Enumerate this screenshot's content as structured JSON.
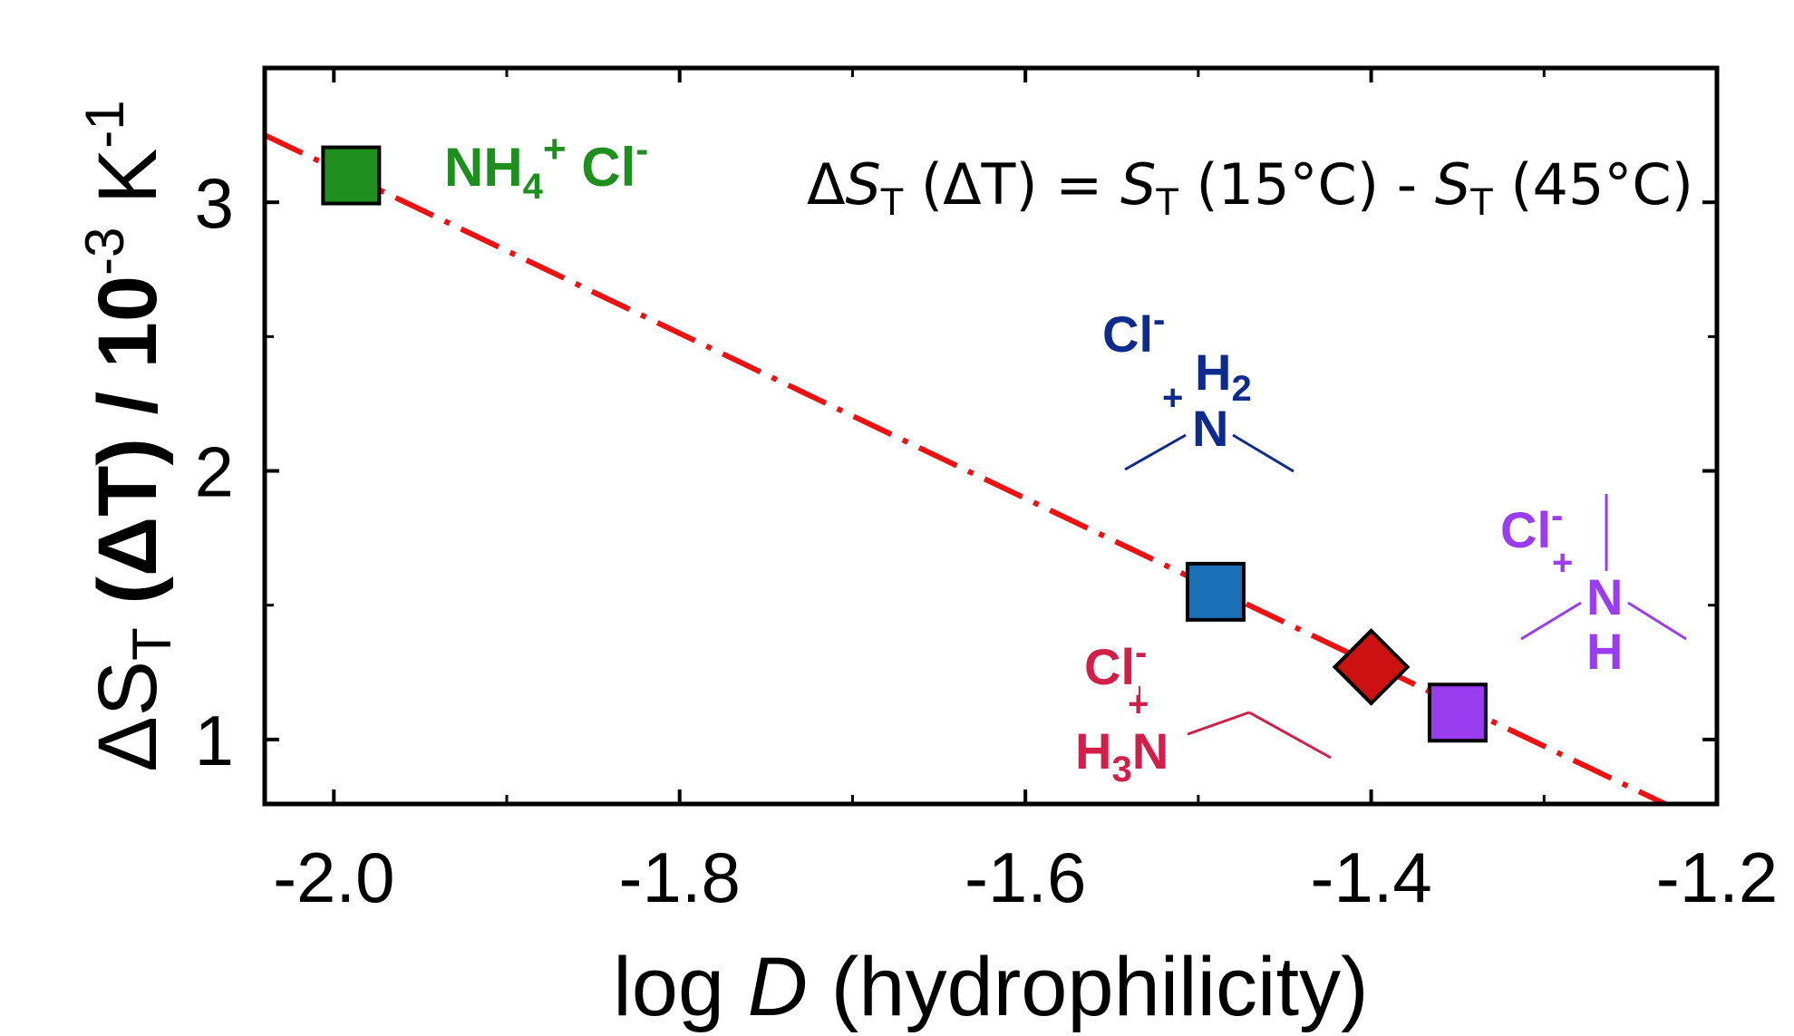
{
  "chart_data": {
    "type": "scatter",
    "xlabel_main": "log ",
    "xlabel_italic": "D",
    "xlabel_rest": " (hydrophilicity)",
    "ylabel_main": "ΔS",
    "ylabel_sub": "T",
    "ylabel_rest": " (ΔT) / 10",
    "ylabel_exp1": "-3",
    "ylabel_unit": " K",
    "ylabel_exp2": "-1",
    "xlim": [
      -2.04,
      -1.2
    ],
    "ylim": [
      0.76,
      3.5
    ],
    "x_ticks": [
      {
        "value": -2.0,
        "label": "-2.0"
      },
      {
        "value": -1.8,
        "label": "-1.8"
      },
      {
        "value": -1.6,
        "label": "-1.6"
      },
      {
        "value": -1.4,
        "label": "-1.4"
      },
      {
        "value": -1.2,
        "label": "-1.2"
      }
    ],
    "x_minor_ticks": [
      -1.9,
      -1.7,
      -1.5,
      -1.3
    ],
    "y_ticks": [
      {
        "value": 1,
        "label": "1"
      },
      {
        "value": 2,
        "label": "2"
      },
      {
        "value": 3,
        "label": "3"
      }
    ],
    "y_minor_ticks": [
      1.5,
      2.5
    ],
    "points": [
      {
        "x": -1.99,
        "y": 3.1,
        "marker": "square",
        "color": "#1e8f1e"
      },
      {
        "x": -1.49,
        "y": 1.55,
        "marker": "square",
        "color": "#1a6fb5"
      },
      {
        "x": -1.4,
        "y": 1.27,
        "marker": "diamond",
        "color": "#cc1111"
      },
      {
        "x": -1.35,
        "y": 1.1,
        "marker": "square",
        "color": "#9a3cf0"
      }
    ],
    "fit_line": {
      "x1": -2.04,
      "y1": 3.25,
      "x2": -1.23,
      "y2": 0.76,
      "color": "#ee1111",
      "style": "dash-dot"
    },
    "annotation": {
      "delta": "Δ",
      "s1": "S",
      "sub1": "T",
      "mid": " (ΔT) = ",
      "s2": "S",
      "sub2": "T",
      "mid2": " (15°C) - ",
      "s3": "S",
      "sub3": "T",
      "end": " (45°C)"
    },
    "labels": {
      "green": {
        "nh": "NH",
        "sub4": "4",
        "plus": "+",
        "cl": " Cl",
        "minus": "-",
        "color": "#1e8f1e"
      },
      "blue": {
        "cl": "Cl",
        "minus": "-",
        "h": "H",
        "sub2": "2",
        "plus": "+",
        "n": "N",
        "color": "#0d2a8c"
      },
      "purple": {
        "cl": "Cl",
        "minus": "-",
        "plus": "+",
        "n": "N",
        "h": "H",
        "color": "#9a3cf0"
      },
      "crimson": {
        "cl": "Cl",
        "minus": "-",
        "plus": "+",
        "h": "H",
        "sub3": "3",
        "n": "N",
        "color": "#d0204a"
      }
    }
  }
}
